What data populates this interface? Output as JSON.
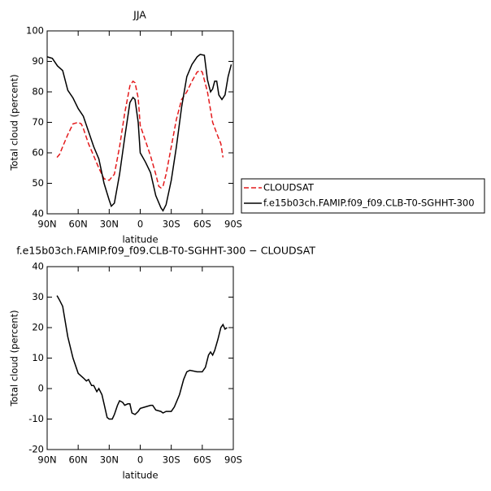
{
  "chart_data": [
    {
      "type": "line",
      "title": "JJA",
      "xlabel": "latitude",
      "ylabel": "Total cloud (percent)",
      "xlim": [
        90,
        -90
      ],
      "xticks": [
        {
          "value": 90,
          "label": "90N"
        },
        {
          "value": 60,
          "label": "60N"
        },
        {
          "value": 30,
          "label": "30N"
        },
        0,
        {
          "value": -30,
          "label": "30S"
        },
        {
          "value": -60,
          "label": "60S"
        },
        {
          "value": -90,
          "label": "90S"
        }
      ],
      "ylim": [
        40,
        100
      ],
      "yticks": [
        40,
        50,
        60,
        70,
        80,
        90,
        100
      ],
      "series": [
        {
          "name": "CLOUDSAT",
          "color": "#e41a1c",
          "line_style": "dashed",
          "x": [
            80.5,
            78,
            75,
            70,
            65,
            60,
            57,
            55,
            50,
            45,
            40,
            35,
            30,
            25,
            20,
            15,
            10,
            7,
            5,
            2,
            0,
            -5,
            -10,
            -15,
            -18,
            -20,
            -22,
            -25,
            -30,
            -35,
            -40,
            -45,
            -50,
            -55,
            -58,
            -60,
            -65,
            -70,
            -75,
            -78,
            -80
          ],
          "values": [
            58.5,
            59.5,
            62,
            66,
            69.5,
            70,
            69.5,
            68,
            63,
            59,
            55,
            51.5,
            51,
            53,
            62,
            73,
            82,
            83.5,
            83,
            78,
            69,
            64,
            59,
            53,
            49,
            48.5,
            49,
            53,
            62,
            71,
            77.5,
            80,
            83.5,
            86.5,
            87,
            86.5,
            80,
            70,
            65.5,
            63,
            58.5
          ]
        },
        {
          "name": "f.e15b03ch.FAMIP.f09_f09.CLB-T0-SGHHT-300",
          "color": "#000000",
          "line_style": "solid",
          "x": [
            90,
            85,
            80,
            75,
            70,
            65,
            60,
            55,
            50,
            45,
            40,
            35,
            30,
            28,
            25,
            20,
            15,
            10,
            7,
            5,
            2,
            0,
            -5,
            -10,
            -15,
            -20,
            -22,
            -25,
            -30,
            -35,
            -40,
            -45,
            -50,
            -55,
            -58,
            -62,
            -65,
            -68,
            -70,
            -72,
            -74,
            -76,
            -79,
            -82,
            -85,
            -88
          ],
          "values": [
            91.5,
            91,
            88.5,
            87,
            80.5,
            78,
            74.5,
            72,
            67,
            62,
            58,
            50,
            44.5,
            42.5,
            43.5,
            53,
            65,
            76.5,
            78.2,
            77.5,
            70,
            60,
            57,
            53.5,
            46,
            42,
            41,
            43,
            51,
            62,
            75,
            85,
            89,
            91.5,
            92.3,
            92,
            84,
            80,
            81,
            83.5,
            83.5,
            79,
            77.5,
            79,
            85,
            89
          ]
        }
      ],
      "legend": "right"
    },
    {
      "type": "line",
      "title": "f.e15b03ch.FAMIP.f09_f09.CLB-T0-SGHHT-300 − CLOUDSAT",
      "xlabel": "latitude",
      "ylabel": "Total cloud (percent)",
      "xlim": [
        90,
        -90
      ],
      "xticks": [
        {
          "value": 90,
          "label": "90N"
        },
        {
          "value": 60,
          "label": "60N"
        },
        {
          "value": 30,
          "label": "30N"
        },
        0,
        {
          "value": -30,
          "label": "30S"
        },
        {
          "value": -60,
          "label": "60S"
        },
        {
          "value": -90,
          "label": "90S"
        }
      ],
      "ylim": [
        -20,
        40
      ],
      "yticks": [
        -20,
        -10,
        0,
        10,
        20,
        30,
        40
      ],
      "color": "#000000",
      "x": [
        80.5,
        78,
        75,
        70,
        65,
        60,
        55,
        52,
        50,
        47,
        45,
        42,
        40,
        37,
        35,
        32,
        30,
        27,
        25,
        22,
        20,
        17,
        15,
        12,
        10,
        8,
        5,
        2,
        0,
        -5,
        -10,
        -12,
        -15,
        -20,
        -22,
        -25,
        -30,
        -33,
        -38,
        -42,
        -45,
        -48,
        -55,
        -60,
        -63,
        -66,
        -68,
        -70,
        -72,
        -75,
        -78,
        -80,
        -82,
        -84
      ],
      "values": [
        30.5,
        29,
        27,
        17,
        10,
        5,
        3.5,
        2.5,
        3,
        1,
        1,
        -1,
        0,
        -2,
        -5,
        -9.5,
        -10,
        -10,
        -8.5,
        -5.5,
        -4,
        -4.5,
        -5.5,
        -5,
        -5,
        -8,
        -8.5,
        -7.5,
        -6.5,
        -6,
        -5.5,
        -5.5,
        -7,
        -7.5,
        -8,
        -7.5,
        -7.5,
        -6,
        -2,
        3,
        5.5,
        6,
        5.5,
        5.5,
        7,
        11,
        12,
        11,
        12.5,
        16,
        20,
        21,
        19.5,
        20
      ]
    }
  ]
}
